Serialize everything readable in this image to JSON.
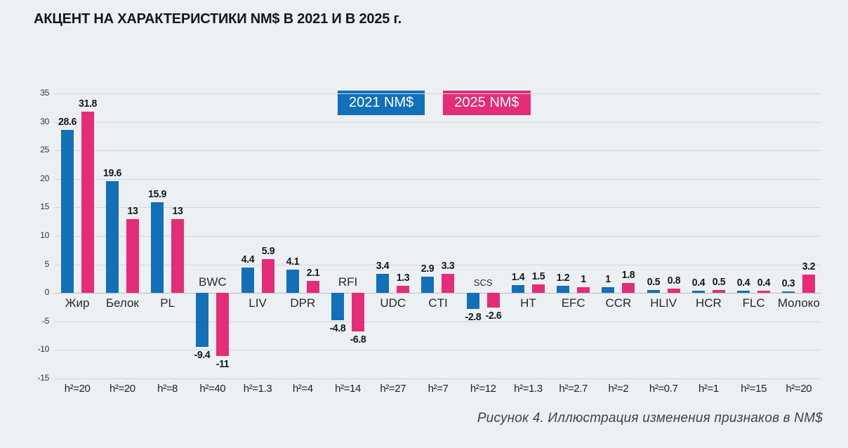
{
  "title": "АКЦЕНТ НА ХАРАКТЕРИСТИКИ NM$ В 2021 И В 2025 г.",
  "caption": "Рисунок 4. Иллюстрация изменения признаков в NM$",
  "chart_data": {
    "type": "bar",
    "title": "АКЦЕНТ НА ХАРАКТЕРИСТИКИ NM$ В 2021 И В 2025 г.",
    "caption": "Рисунок 4. Иллюстрация изменения признаков в NM$",
    "categories": [
      "Жир",
      "Белок",
      "PL",
      "BWC",
      "LIV",
      "DPR",
      "RFI",
      "UDC",
      "CTI",
      "SCS",
      "HT",
      "EFC",
      "CCR",
      "HLIV",
      "HCR",
      "FLC",
      "Молоко"
    ],
    "series": [
      {
        "name": "2021 NM$",
        "color": "#1170b7",
        "values": [
          28.6,
          19.6,
          15.9,
          -9.4,
          4.4,
          4.1,
          -4.8,
          3.4,
          2.9,
          -2.8,
          1.4,
          1.2,
          1,
          0.5,
          0.4,
          0.4,
          0.3
        ]
      },
      {
        "name": "2025 NM$",
        "color": "#e52c78",
        "values": [
          31.8,
          13,
          13,
          -11,
          5.9,
          2.1,
          -6.8,
          1.3,
          3.3,
          -2.6,
          1.5,
          1,
          1.8,
          0.8,
          0.5,
          0.4,
          3.2
        ]
      }
    ],
    "h2_prefix": "h²=",
    "h2": [
      "20",
      "20",
      "8",
      "40",
      "1.3",
      "4",
      "14",
      "27",
      "7",
      "12",
      "1.3",
      "2.7",
      "2",
      "0.7",
      "1",
      "15",
      "20"
    ],
    "ylim": [
      -15,
      35
    ],
    "ytick_step": 5,
    "grid": true,
    "legend_position": "top-center",
    "background_color": "#edf0f2"
  }
}
